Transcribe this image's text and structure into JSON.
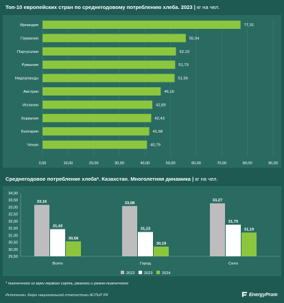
{
  "chart1": {
    "title": "Топ-10 европейских стран по среднегодовому потреблению хлеба. 2023",
    "unit": "кг на чел."
  },
  "chart2": {
    "title": "Среднегодовое потребление хлеба*. Казахстан. Многолетняя динамика",
    "unit": "кг на чел."
  },
  "footnote": "* пшеничного из муки первого сорта, ржаного и ржано-пшеничного",
  "source": "Источники: Бюро национальной статистики АСПиР РК",
  "logo": "EnergyProm",
  "colors": {
    "background": "#1e5a52",
    "bar_green": "#8cc63f",
    "bar_gray": "#bdbdbd",
    "bar_white": "#ffffff"
  },
  "chart_data": [
    {
      "type": "bar",
      "orientation": "horizontal",
      "categories": [
        "Ирландия",
        "Германия",
        "Португалия",
        "Румыния",
        "Нидерланды",
        "Австрия",
        "Испания",
        "Хорватия",
        "Болгария",
        "Чехия"
      ],
      "values": [
        77.31,
        55.94,
        52.1,
        51.79,
        51.56,
        46.16,
        42.89,
        42.43,
        41.68,
        40.79
      ],
      "value_labels": [
        "77,31",
        "55,94",
        "52,10",
        "51,79",
        "51,56",
        "46,16",
        "42,89",
        "42,43",
        "41,68",
        "40,79"
      ],
      "xlim": [
        0,
        90
      ],
      "xticks": [
        "0,00",
        "10,00",
        "20,00",
        "30,00",
        "40,00",
        "50,00",
        "60,00",
        "70,00",
        "80,00",
        "90,00"
      ],
      "grid": true
    },
    {
      "type": "bar",
      "categories": [
        "Всего",
        "Город",
        "Село"
      ],
      "series": [
        {
          "name": "2022",
          "values": [
            33.16,
            33.08,
            33.27
          ],
          "labels": [
            "33,16",
            "33,08",
            "33,27"
          ],
          "color": "#bdbdbd"
        },
        {
          "name": "2023",
          "values": [
            31.43,
            31.23,
            31.75
          ],
          "labels": [
            "31,43",
            "31,23",
            "31,75"
          ],
          "color": "#ffffff"
        },
        {
          "name": "2024",
          "values": [
            30.56,
            30.19,
            31.19
          ],
          "labels": [
            "30,56",
            "30,19",
            "31,19"
          ],
          "color": "#8cc63f"
        }
      ],
      "ylim": [
        29.5,
        34.0
      ],
      "yticks": [
        "29,50",
        "30,00",
        "30,50",
        "31,00",
        "31,50",
        "32,00",
        "32,50",
        "33,00",
        "33,50",
        "34,00"
      ],
      "legend_position": "bottom"
    }
  ]
}
